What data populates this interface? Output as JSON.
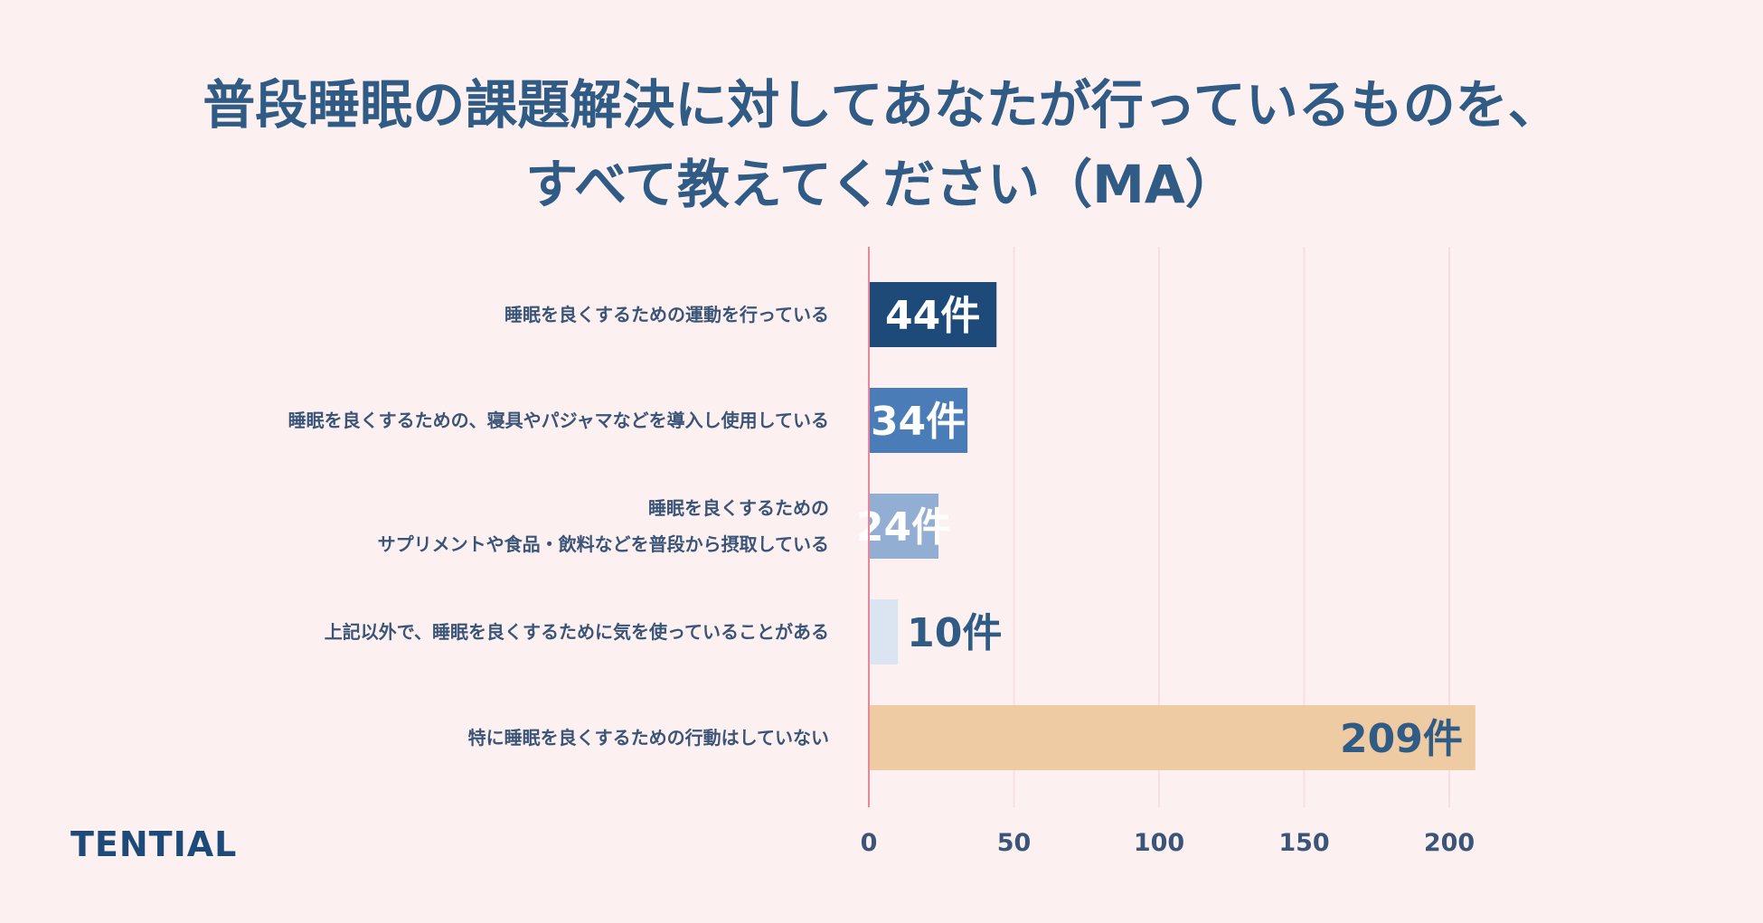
{
  "title": {
    "line1": "普段睡眠の課題解決に対してあなたが行っているものを、",
    "line2": "すべて教えてください（MA）"
  },
  "logo": "TENTIAL",
  "chart_data": {
    "type": "bar",
    "orientation": "horizontal",
    "categories": [
      [
        "睡眠を良くするための運動を行っている"
      ],
      [
        "睡眠を良くするための、寝具やパジャマなどを導入し使用している"
      ],
      [
        "睡眠を良くするための",
        "サプリメントや食品・飲料などを普段から摂取している"
      ],
      [
        "上記以外で、睡眠を良くするために気を使っていることがある"
      ],
      [
        "特に睡眠を良くするための行動はしていない"
      ]
    ],
    "values": [
      44,
      34,
      24,
      10,
      209
    ],
    "value_labels": [
      "44件",
      "34件",
      "24件",
      "10件",
      "209件"
    ],
    "bar_colors": [
      "#1d4a78",
      "#4a7db8",
      "#92afd3",
      "#dbe5f1",
      "#eecba3"
    ],
    "label_colors": [
      "#ffffff",
      "#ffffff",
      "#ffffff",
      "#2f5b85",
      "#2f5b85"
    ],
    "label_position": [
      "inside",
      "inside",
      "inside",
      "outside",
      "inside-end"
    ],
    "xlim": [
      0,
      250
    ],
    "xticks": [
      "0",
      "50",
      "100",
      "150",
      "200"
    ],
    "grid": true
  }
}
